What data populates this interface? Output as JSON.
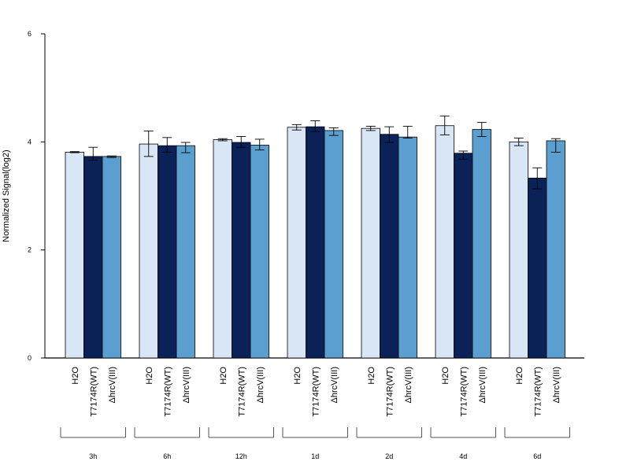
{
  "chart_data": {
    "type": "bar",
    "title": "",
    "xlabel": "",
    "ylabel": "Normalized Signal(log2)",
    "ylim": [
      0,
      6
    ],
    "yticks": [
      "0",
      "2",
      "4",
      "6"
    ],
    "groups": [
      "3h",
      "6h",
      "12h",
      "1d",
      "2d",
      "4d",
      "6d"
    ],
    "grid": false,
    "legend": "none",
    "series": [
      {
        "name": "H2O",
        "color": "#d8e6f5",
        "values": [
          3.81,
          3.96,
          4.04,
          4.27,
          4.25,
          4.3,
          4.0
        ],
        "err_low": [
          3.8,
          3.73,
          4.02,
          4.22,
          4.21,
          4.13,
          3.93
        ],
        "err_high": [
          3.82,
          4.2,
          4.06,
          4.32,
          4.29,
          4.48,
          4.07
        ]
      },
      {
        "name": "T7174R(WT)",
        "color": "#0a2258",
        "values": [
          3.73,
          3.93,
          3.99,
          4.28,
          4.14,
          3.79,
          3.33
        ],
        "err_low": [
          3.66,
          3.81,
          3.9,
          4.19,
          3.99,
          3.68,
          3.13
        ],
        "err_high": [
          3.9,
          4.08,
          4.1,
          4.39,
          4.28,
          3.83,
          3.52
        ]
      },
      {
        "name": "ΔhrcV(III)",
        "color": "#5a9fd0",
        "values": [
          3.73,
          3.93,
          3.94,
          4.21,
          4.09,
          4.23,
          4.02
        ],
        "err_low": [
          3.71,
          3.8,
          3.85,
          4.12,
          4.07,
          4.1,
          3.81
        ],
        "err_high": [
          3.74,
          3.99,
          4.05,
          4.26,
          4.29,
          4.36,
          4.06
        ]
      }
    ]
  }
}
